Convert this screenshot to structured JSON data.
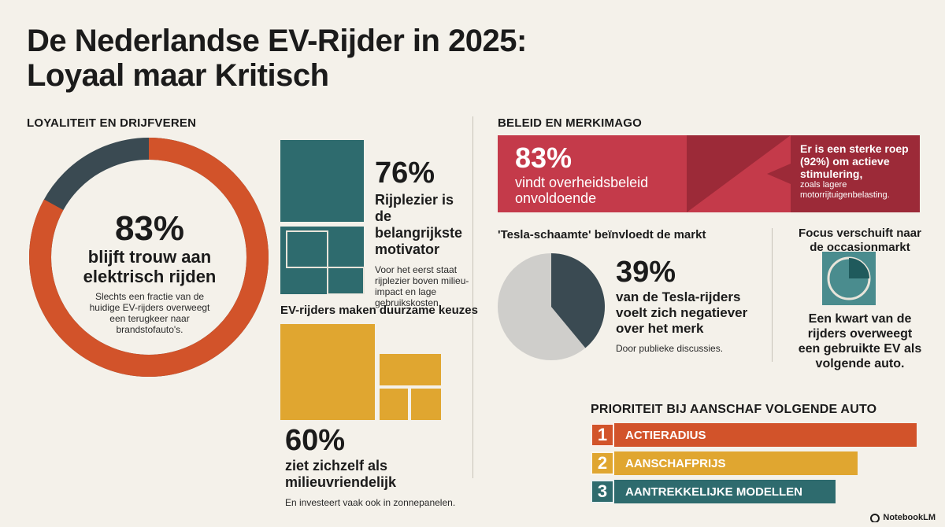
{
  "title_line1": "De Nederlandse EV-Rijder in 2025:",
  "title_line2": "Loyaal maar Kritisch",
  "left": {
    "section_title": "LOYALITEIT EN DRIJFVEREN",
    "donut": {
      "percent_value": 83,
      "big": "83%",
      "line1": "blijft trouw aan",
      "line2": "elektrisch rijden",
      "desc": "Slechts een fractie van de huidige EV-rijders overweegt een terugkeer naar brandstofauto's.",
      "color_main": "#d2532a",
      "color_rest": "#3a4a52"
    },
    "motivator": {
      "big": "76%",
      "line1": "Rijplezier is de",
      "line2": "belangrijkste",
      "line3": "motivator",
      "desc": "Voor het eerst staat rijplezier boven milieu-impact en lage gebruikskosten.",
      "color": "#2e6b6e"
    },
    "sustainable": {
      "heading": "EV-rijders maken duurzame keuzes",
      "big": "60%",
      "line1": "ziet zichzelf als",
      "line2": "milieuvriendelijk",
      "desc": "En investeert vaak ook in zonnepanelen.",
      "color": "#e0a630"
    }
  },
  "right": {
    "section_title": "BELEID EN MERKIMAGO",
    "policy": {
      "big": "83%",
      "line1": "vindt overheidsbeleid",
      "line2": "onvoldoende",
      "callout_strong": "Er is een sterke roep (92%) om actieve stimulering,",
      "callout_rest": "zoals lagere motorrijtuigenbelasting.",
      "color": "#c43a4a",
      "color_dark": "#9c2a38"
    },
    "tesla": {
      "heading": "'Tesla-schaamte' beïnvloedt de markt",
      "percent_value": 39,
      "big": "39%",
      "line1": "van de Tesla-rijders",
      "line2": "voelt zich negatiever",
      "line3": "over het merk",
      "desc": "Door publieke discussies."
    },
    "occasion": {
      "heading_line1": "Focus verschuift naar",
      "heading_line2": "de occasionmarkt",
      "line1": "Een kwart van de",
      "line2": "rijders overweegt",
      "line3": "een gebruikte EV als",
      "line4": "volgende auto.",
      "color": "#2e6b6e"
    },
    "priority": {
      "heading": "PRIORITEIT BIJ AANSCHAF VOLGENDE AUTO",
      "items": [
        {
          "num": "1",
          "label": "ACTIERADIUS",
          "color": "#d2532a",
          "share": 1.0
        },
        {
          "num": "2",
          "label": "AANSCHAFPRIJS",
          "color": "#e0a630",
          "share": 0.82
        },
        {
          "num": "3",
          "label": "AANTREKKELIJKE MODELLEN",
          "color": "#2e6b6e",
          "share": 0.75
        }
      ]
    }
  },
  "brand": "NotebookLM"
}
